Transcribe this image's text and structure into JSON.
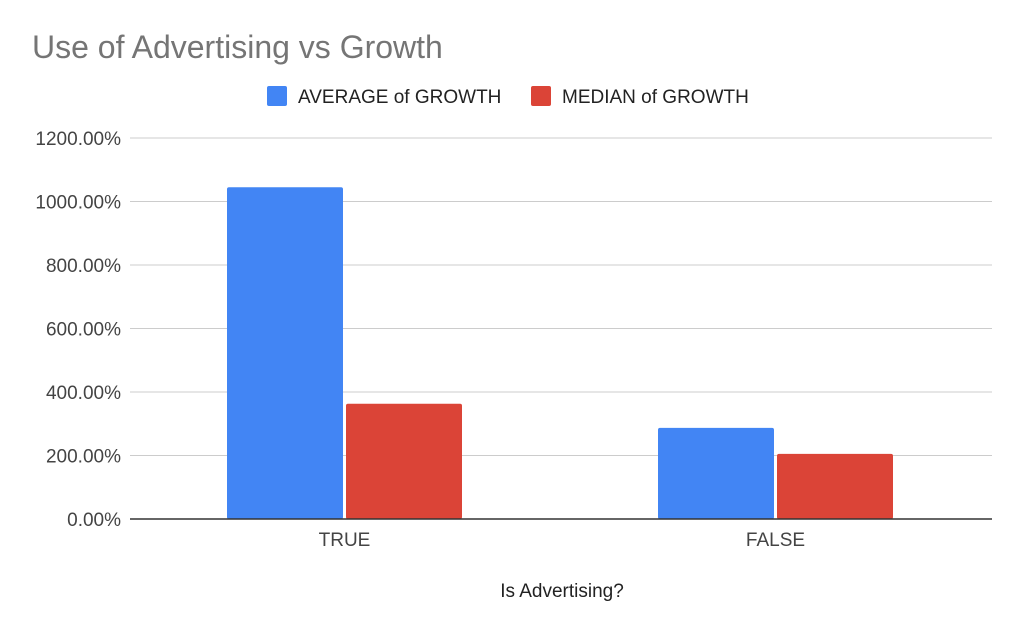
{
  "chart_data": {
    "type": "bar",
    "title": "Use of Advertising vs Growth",
    "xlabel": "Is Advertising?",
    "ylabel": "",
    "categories": [
      "TRUE",
      "FALSE"
    ],
    "series": [
      {
        "name": "AVERAGE of GROWTH",
        "color": "#4285f4",
        "values": [
          1045,
          287
        ]
      },
      {
        "name": "MEDIAN of GROWTH",
        "color": "#db4437",
        "values": [
          363,
          205
        ]
      }
    ],
    "ylim": [
      0,
      1200
    ],
    "yticks": [
      0,
      200,
      400,
      600,
      800,
      1000,
      1200
    ],
    "ytick_labels": [
      "0.00%",
      "200.00%",
      "400.00%",
      "600.00%",
      "800.00%",
      "1000.00%",
      "1200.00%"
    ],
    "grid": true,
    "legend_position": "top"
  }
}
